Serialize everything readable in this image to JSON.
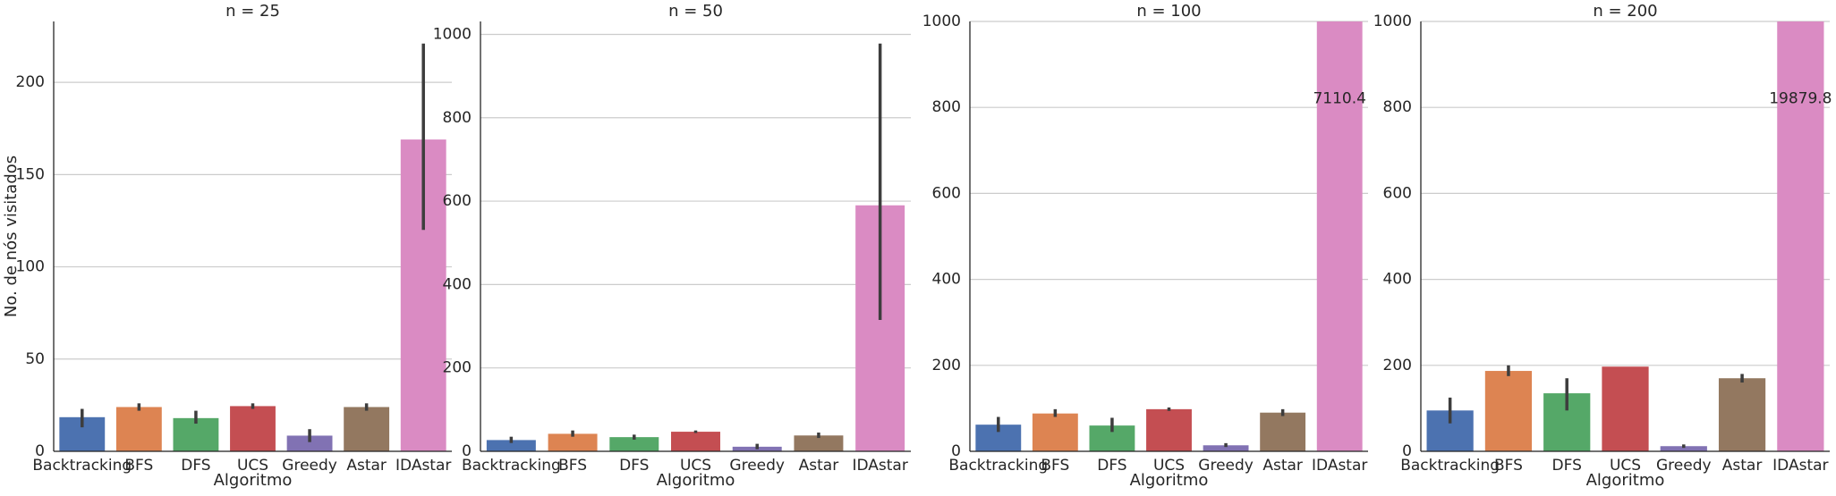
{
  "chart_data": [
    {
      "type": "bar",
      "title": "n = 25",
      "xlabel": "Algoritmo",
      "ylabel": "No. de nós visitados",
      "categories": [
        "Backtracking",
        "BFS",
        "DFS",
        "UCS",
        "Greedy",
        "Astar",
        "IDAstar"
      ],
      "values": [
        18.5,
        24,
        18,
        24.5,
        8.5,
        24,
        169
      ],
      "ci_low": [
        13,
        22,
        15,
        23,
        5,
        22,
        120
      ],
      "ci_high": [
        23,
        26,
        22,
        26,
        12,
        26,
        221
      ],
      "colors": [
        "#4c72b0",
        "#dd8452",
        "#55a868",
        "#c44e52",
        "#8172b3",
        "#937860",
        "#da8bc3"
      ],
      "ylim": [
        0,
        233
      ],
      "yticks": [
        0,
        50,
        100,
        150,
        200
      ],
      "grid": true
    },
    {
      "type": "bar",
      "title": "n = 50",
      "xlabel": "Algoritmo",
      "categories": [
        "Backtracking",
        "BFS",
        "DFS",
        "UCS",
        "Greedy",
        "Astar",
        "IDAstar"
      ],
      "values": [
        27,
        42,
        34,
        47,
        11,
        38,
        590
      ],
      "ci_low": [
        20,
        35,
        28,
        44,
        5,
        32,
        315
      ],
      "ci_high": [
        35,
        50,
        40,
        50,
        18,
        45,
        978
      ],
      "colors": [
        "#4c72b0",
        "#dd8452",
        "#55a868",
        "#c44e52",
        "#8172b3",
        "#937860",
        "#da8bc3"
      ],
      "ylim": [
        0,
        1031
      ],
      "yticks": [
        0,
        200,
        400,
        600,
        800,
        1000
      ],
      "grid": true
    },
    {
      "type": "bar",
      "title": "n = 100",
      "xlabel": "Algoritmo",
      "categories": [
        "Backtracking",
        "BFS",
        "DFS",
        "UCS",
        "Greedy",
        "Astar",
        "IDAstar"
      ],
      "values": [
        62,
        88,
        60,
        98,
        14,
        90,
        7110.4
      ],
      "value_labels": [
        null,
        null,
        null,
        null,
        null,
        null,
        "7110.4"
      ],
      "ci_low": [
        45,
        80,
        45,
        94,
        10,
        82,
        null
      ],
      "ci_high": [
        80,
        98,
        78,
        102,
        19,
        98,
        null
      ],
      "colors": [
        "#4c72b0",
        "#dd8452",
        "#55a868",
        "#c44e52",
        "#8172b3",
        "#937860",
        "#da8bc3"
      ],
      "ylim": [
        0,
        1000
      ],
      "yticks": [
        0,
        200,
        400,
        600,
        800,
        1000
      ],
      "grid": true
    },
    {
      "type": "bar",
      "title": "n = 200",
      "xlabel": "Algoritmo",
      "categories": [
        "Backtracking",
        "BFS",
        "DFS",
        "UCS",
        "Greedy",
        "Astar",
        "IDAstar"
      ],
      "values": [
        95,
        187,
        135,
        197,
        12,
        170,
        19879.8
      ],
      "value_labels": [
        null,
        null,
        null,
        null,
        null,
        null,
        "19879.8"
      ],
      "ci_low": [
        65,
        175,
        95,
        null,
        8,
        160,
        null
      ],
      "ci_high": [
        125,
        200,
        170,
        null,
        16,
        180,
        null
      ],
      "colors": [
        "#4c72b0",
        "#dd8452",
        "#55a868",
        "#c44e52",
        "#8172b3",
        "#937860",
        "#da8bc3"
      ],
      "ylim": [
        0,
        1000
      ],
      "yticks": [
        0,
        200,
        400,
        600,
        800,
        1000
      ],
      "grid": true
    }
  ]
}
